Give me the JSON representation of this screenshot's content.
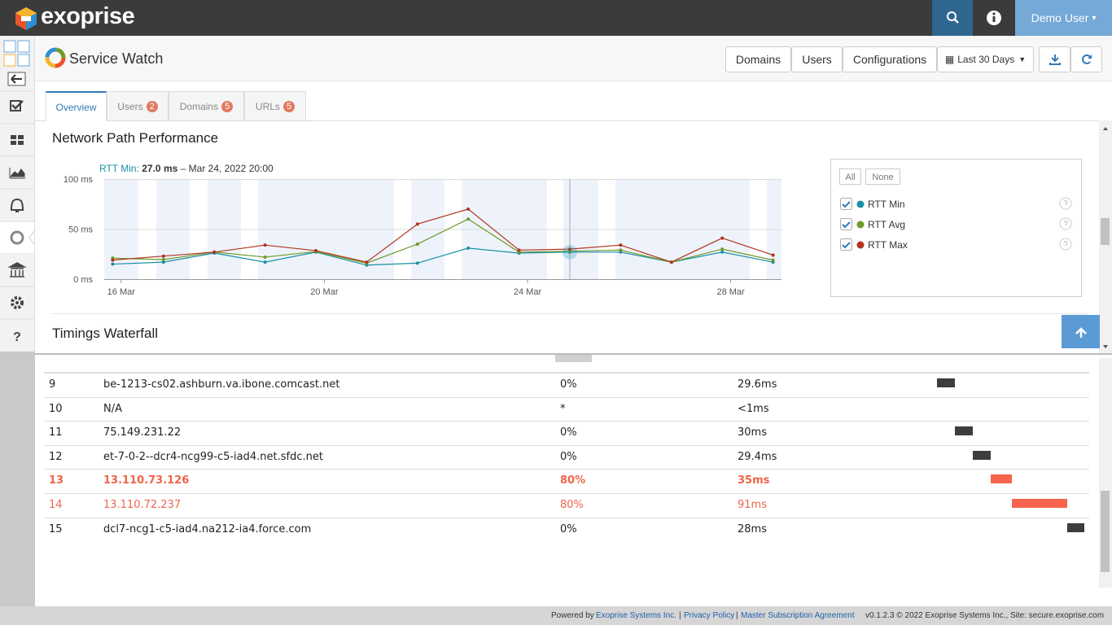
{
  "topbar": {
    "brand": "exoprise",
    "user": "Demo User"
  },
  "header": {
    "title": "Service Watch",
    "buttons": [
      "Domains",
      "Users",
      "Configurations"
    ],
    "range": "Last 30 Days"
  },
  "sidebar": {
    "help": "?"
  },
  "tabs": [
    {
      "label": "Overview"
    },
    {
      "label": "Users",
      "count": 2
    },
    {
      "label": "Domains",
      "count": 5
    },
    {
      "label": "URLs",
      "count": 5
    }
  ],
  "chart_data": {
    "type": "line",
    "title": "Network Path Performance",
    "tooltip": {
      "label": "RTT Min:",
      "value": "27.0 ms",
      "date": "– Mar 24, 2022 20:00"
    },
    "x": [
      "2022-03-15T20:00",
      "2022-03-16T20:00",
      "2022-03-17T20:00",
      "2022-03-18T20:00",
      "2022-03-19T20:00",
      "2022-03-20T20:00",
      "2022-03-21T20:00",
      "2022-03-22T20:00",
      "2022-03-23T20:00",
      "2022-03-24T20:00",
      "2022-03-25T20:00",
      "2022-03-26T20:00",
      "2022-03-27T20:00",
      "2022-03-28T20:00"
    ],
    "xlim": [
      "2022-03-15T16:00",
      "2022-03-29T00:00"
    ],
    "xticks": [
      {
        "value": "2022-03-16T00:00",
        "label": "16 Mar"
      },
      {
        "value": "2022-03-20T00:00",
        "label": "20 Mar"
      },
      {
        "value": "2022-03-24T00:00",
        "label": "24 Mar"
      },
      {
        "value": "2022-03-28T00:00",
        "label": "28 Mar"
      }
    ],
    "ylim": [
      0,
      100
    ],
    "yticks": [
      {
        "value": 0,
        "label": "0 ms"
      },
      {
        "value": 50,
        "label": "50 ms"
      },
      {
        "value": 100,
        "label": "100 ms"
      }
    ],
    "grid": true,
    "legend_buttons": [
      "All",
      "None"
    ],
    "series": [
      {
        "name": "RTT Min",
        "color": "#1a8fa6",
        "values": [
          15,
          17,
          26,
          17,
          27,
          14,
          16,
          31,
          26,
          27,
          27,
          17,
          27,
          17
        ]
      },
      {
        "name": "RTT Avg",
        "color": "#6e9a27",
        "values": [
          21,
          19.5,
          27,
          22,
          27.5,
          16,
          35,
          60,
          27,
          28,
          29,
          17,
          30,
          19
        ]
      },
      {
        "name": "RTT Max",
        "color": "#b0341c",
        "values": [
          19,
          23,
          27,
          34,
          28.5,
          17,
          55,
          70,
          29,
          30,
          34,
          17,
          41,
          24
        ]
      }
    ]
  },
  "waterfall": {
    "title": "Timings Waterfall",
    "rows": [
      [
        "9",
        "be-1213-cs02.ashburn.va.ibone.comcast.net",
        "0%",
        "29.6ms"
      ],
      [
        "10",
        "N/A",
        "*",
        "<1ms"
      ],
      [
        "11",
        "75.149.231.22",
        "0%",
        "30ms"
      ],
      [
        "12",
        "et-7-0-2--dcr4-ncg99-c5-iad4.net.sfdc.net",
        "0%",
        "29.4ms"
      ],
      [
        "13",
        "13.110.73.126",
        "80%",
        "35ms"
      ],
      [
        "14",
        "13.110.72.237",
        "80%",
        "91ms"
      ],
      [
        "15",
        "dcl7-ncg1-c5-iad4.na212-ia4.force.com",
        "0%",
        "28ms"
      ]
    ]
  },
  "footer": {
    "powered": "Powered by",
    "company": "Exoprise Systems Inc.",
    "sep": "|",
    "privacy": "Privacy Policy",
    "msa": "Master Subscription Agreement",
    "version": "v0.1.2.3 © 2022 Exoprise Systems Inc., Site: secure.exoprise.com"
  }
}
